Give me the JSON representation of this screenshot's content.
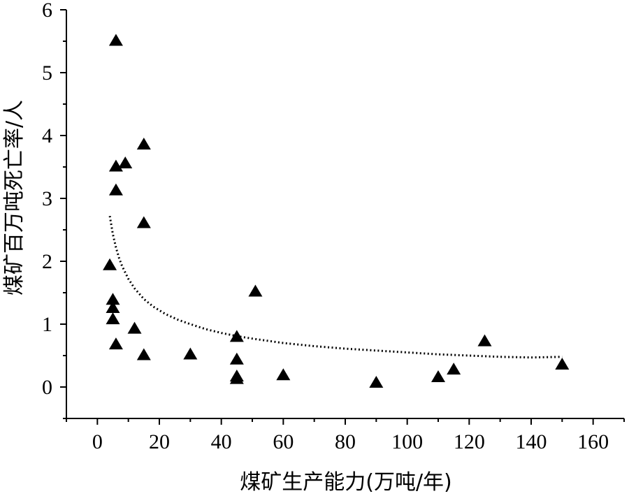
{
  "chart_data": {
    "type": "scatter",
    "title": "",
    "xlabel": "煤矿生产能力(万吨/年)",
    "ylabel": "煤矿百万吨死亡率/人",
    "xlim": [
      -10,
      170
    ],
    "ylim": [
      -0.5,
      6
    ],
    "xticks": [
      0,
      20,
      40,
      60,
      80,
      100,
      120,
      140,
      160
    ],
    "yticks": [
      0,
      1,
      2,
      3,
      4,
      5,
      6
    ],
    "marker": "triangle",
    "grid": false,
    "legend": "none",
    "points": [
      {
        "x": 6,
        "y": 5.5
      },
      {
        "x": 15,
        "y": 3.85
      },
      {
        "x": 9,
        "y": 3.55
      },
      {
        "x": 6,
        "y": 3.5
      },
      {
        "x": 6,
        "y": 3.12
      },
      {
        "x": 15,
        "y": 2.6
      },
      {
        "x": 4,
        "y": 1.93
      },
      {
        "x": 5,
        "y": 1.38
      },
      {
        "x": 5,
        "y": 1.25
      },
      {
        "x": 5,
        "y": 1.07
      },
      {
        "x": 12,
        "y": 0.92
      },
      {
        "x": 6,
        "y": 0.67
      },
      {
        "x": 15,
        "y": 0.5
      },
      {
        "x": 30,
        "y": 0.51
      },
      {
        "x": 45,
        "y": 0.79
      },
      {
        "x": 45,
        "y": 0.43
      },
      {
        "x": 45,
        "y": 0.16
      },
      {
        "x": 45,
        "y": 0.12
      },
      {
        "x": 51,
        "y": 1.51
      },
      {
        "x": 60,
        "y": 0.18
      },
      {
        "x": 90,
        "y": 0.06
      },
      {
        "x": 110,
        "y": 0.15
      },
      {
        "x": 115,
        "y": 0.27
      },
      {
        "x": 125,
        "y": 0.72
      },
      {
        "x": 150,
        "y": 0.35
      }
    ],
    "trendline": {
      "style": "dotted",
      "x": [
        4,
        5,
        6,
        7,
        8,
        10,
        12,
        15,
        18,
        22,
        26,
        30,
        35,
        40,
        45,
        50,
        60,
        70,
        80,
        90,
        100,
        110,
        120,
        130,
        140,
        150
      ],
      "y": [
        2.72,
        2.43,
        2.22,
        2.05,
        1.92,
        1.72,
        1.57,
        1.4,
        1.28,
        1.16,
        1.07,
        1.0,
        0.92,
        0.86,
        0.81,
        0.77,
        0.7,
        0.65,
        0.61,
        0.58,
        0.55,
        0.52,
        0.5,
        0.48,
        0.47,
        0.48
      ]
    }
  }
}
